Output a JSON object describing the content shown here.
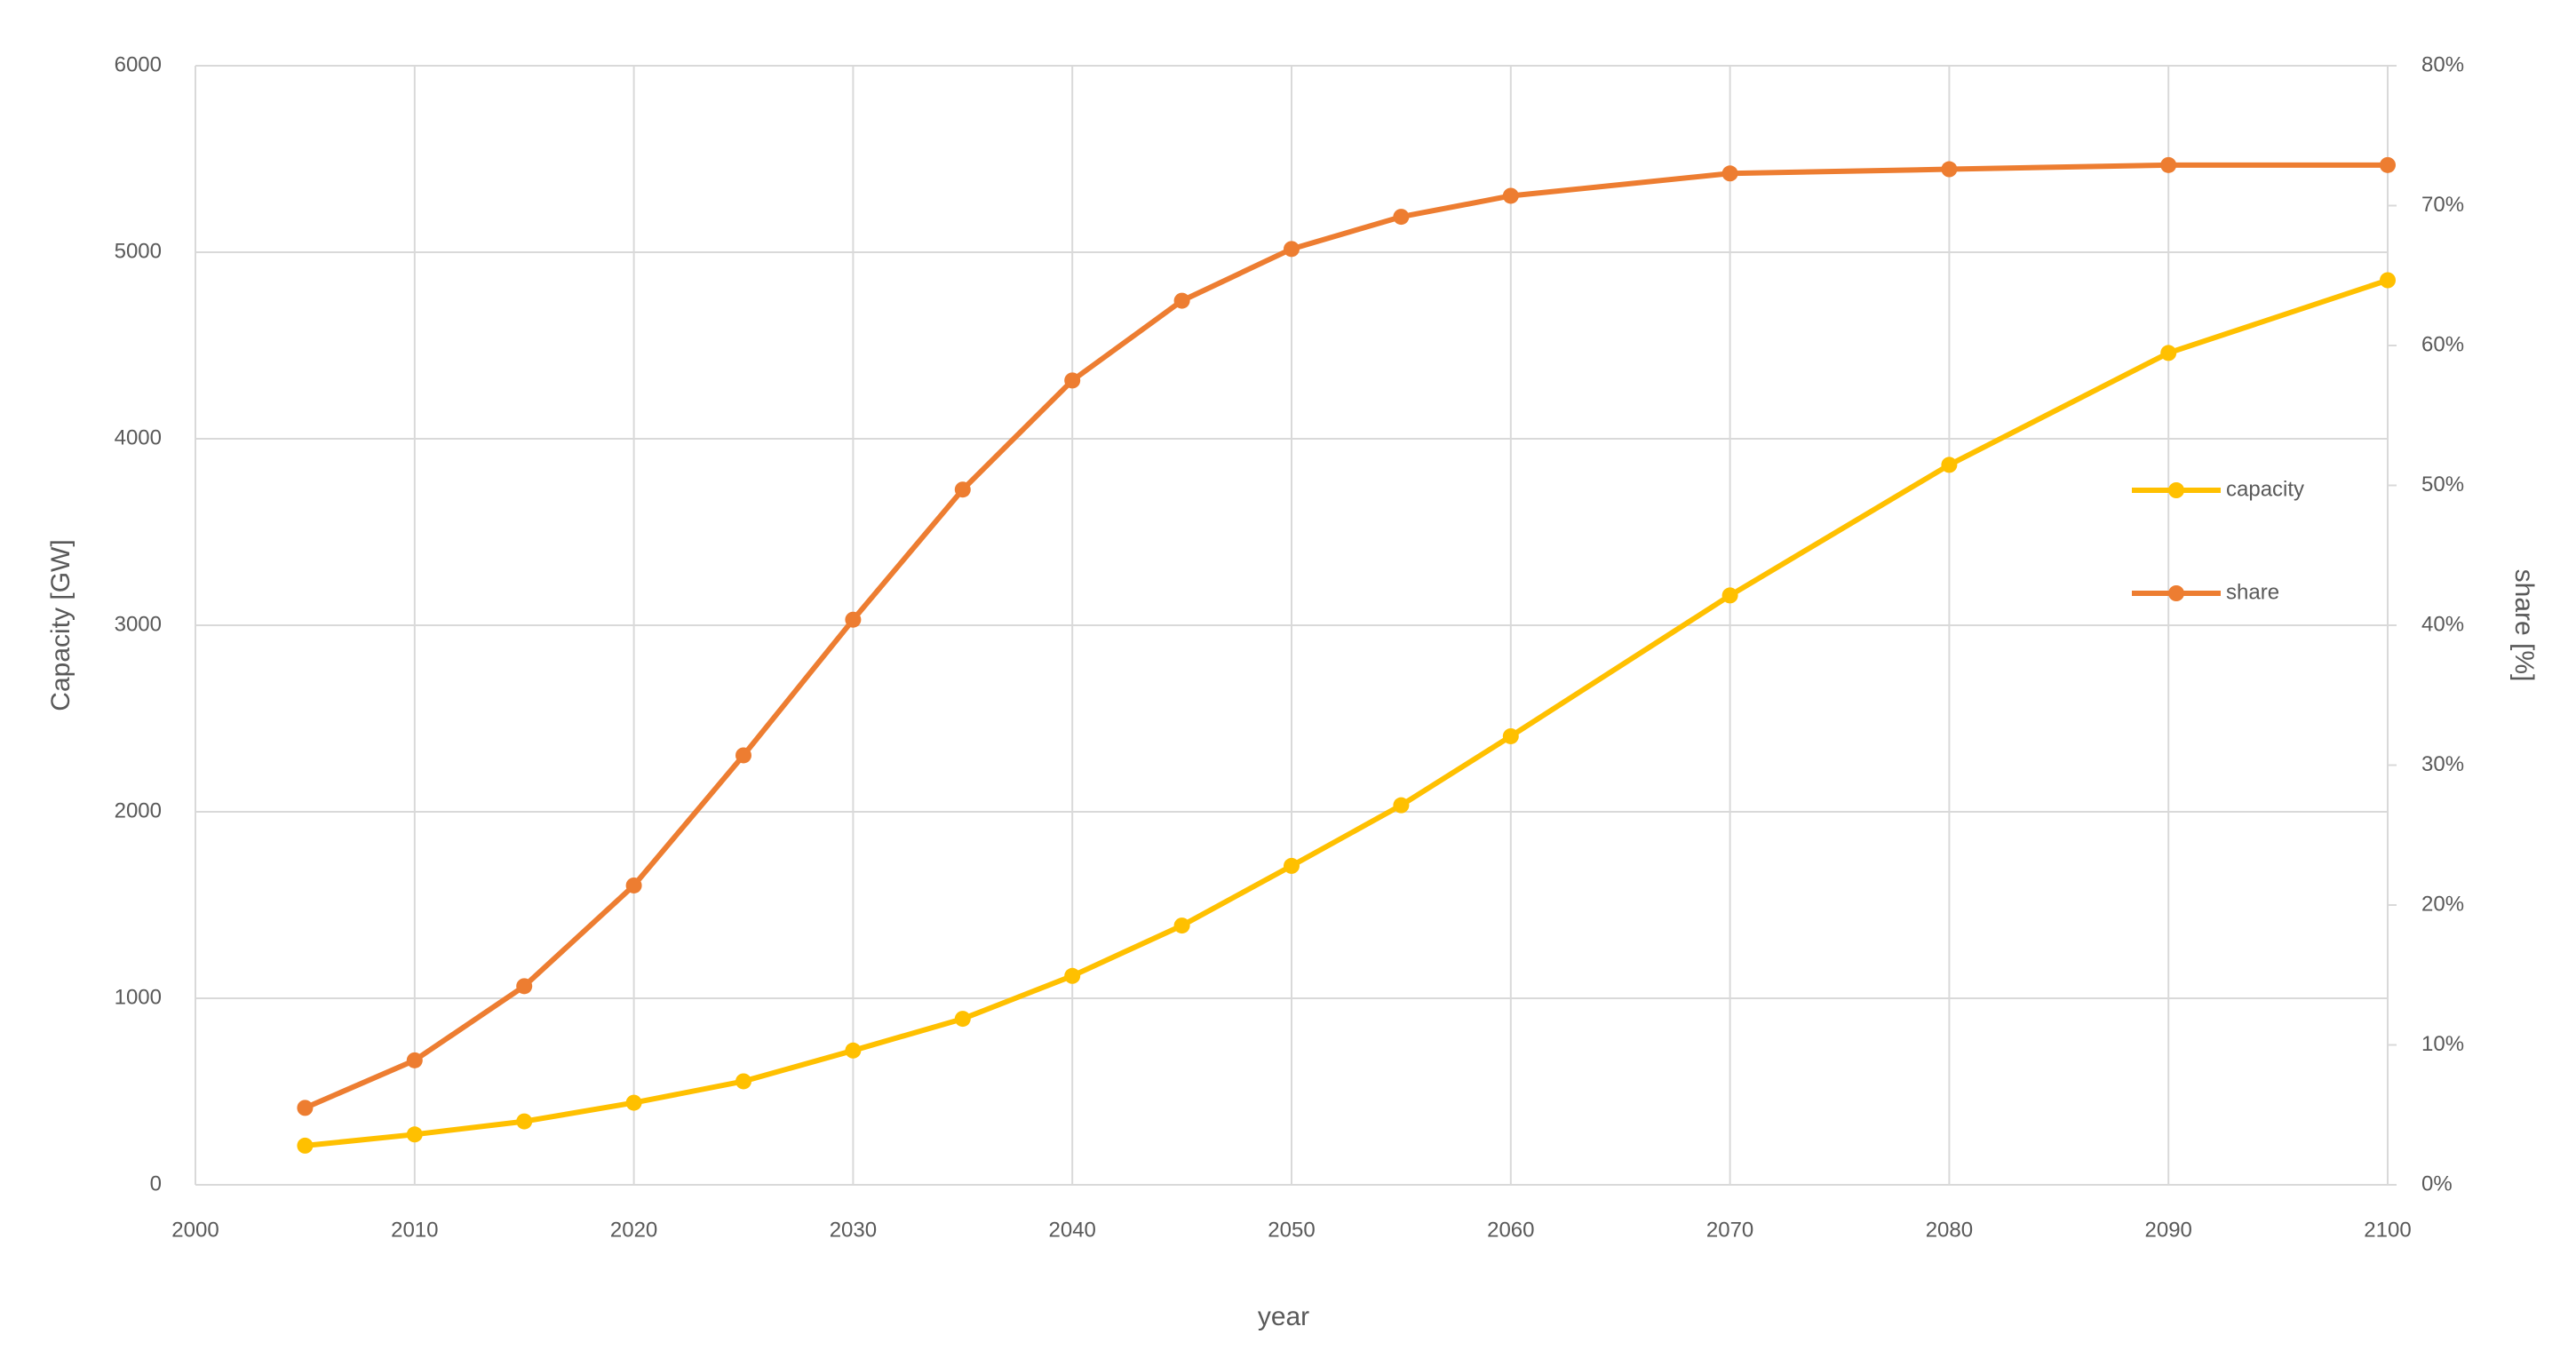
{
  "chart_data": {
    "type": "line",
    "x": [
      2005,
      2010,
      2015,
      2020,
      2025,
      2030,
      2035,
      2040,
      2045,
      2050,
      2055,
      2060,
      2070,
      2080,
      2090,
      2100
    ],
    "xlabel": "year",
    "ylabel": "Capacity [GW]",
    "y2label": "share [%]",
    "xlim": [
      2000,
      2100
    ],
    "xticks": [
      2000,
      2010,
      2020,
      2030,
      2040,
      2050,
      2060,
      2070,
      2080,
      2090,
      2100
    ],
    "ylim": [
      0,
      6000
    ],
    "yticks": [
      0,
      1000,
      2000,
      3000,
      4000,
      5000,
      6000
    ],
    "y2lim": [
      0,
      80
    ],
    "y2ticks": [
      {
        "value": 0,
        "label": "0%"
      },
      {
        "value": 10,
        "label": "10%"
      },
      {
        "value": 20,
        "label": "20%"
      },
      {
        "value": 30,
        "label": "30%"
      },
      {
        "value": 40,
        "label": "40%"
      },
      {
        "value": 50,
        "label": "50%"
      },
      {
        "value": 60,
        "label": "60%"
      },
      {
        "value": 70,
        "label": "70%"
      },
      {
        "value": 80,
        "label": "80%"
      }
    ],
    "grid": true,
    "legend": "right",
    "series": [
      {
        "name": "capacity",
        "color": "#ffc000",
        "values": [
          210,
          270,
          340,
          440,
          555,
          720,
          890,
          1120,
          1390,
          1710,
          2035,
          2405,
          3160,
          3860,
          4460,
          4850
        ]
      },
      {
        "name": "share",
        "color": "#ed7d31",
        "axis": "y2",
        "values": [
          5.5,
          8.9,
          14.2,
          21.4,
          30.7,
          40.4,
          49.7,
          57.5,
          63.2,
          66.9,
          69.2,
          70.7,
          72.3,
          72.6,
          72.9,
          72.9
        ]
      }
    ]
  }
}
